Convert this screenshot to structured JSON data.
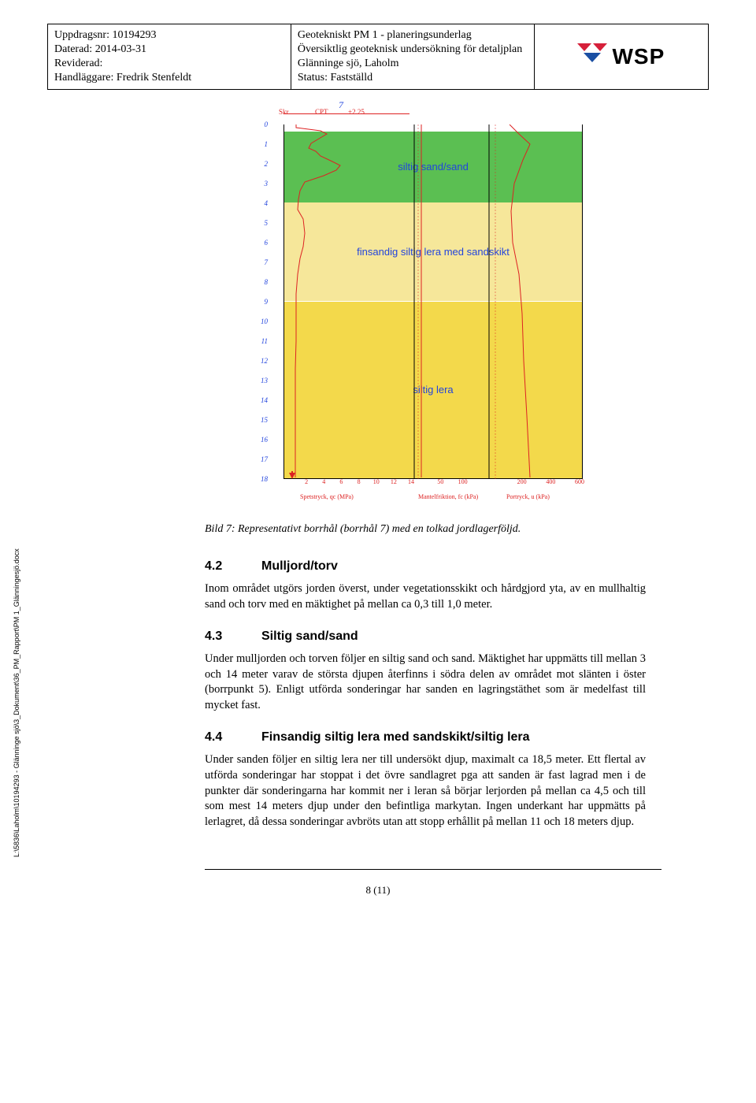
{
  "header": {
    "left": {
      "uppdragsnr": "Uppdragsnr: 10194293",
      "daterad": "Daterad: 2014-03-31",
      "reviderad": "Reviderad:",
      "handlaggare": "Handläggare: Fredrik Stenfeldt"
    },
    "mid": {
      "title": "Geotekniskt PM 1 - planeringsunderlag",
      "sub1": "Översiktlig geoteknisk undersökning för detaljplan",
      "sub2": "Glänninge sjö, Laholm",
      "status": "Status: Fastställd"
    },
    "logo_text": "WSP"
  },
  "chart": {
    "point_label": "7",
    "top_axis": {
      "skr": "Skr",
      "cpt": "CPT",
      "val": "+2.25"
    },
    "y_ticks": [
      0,
      1,
      2,
      3,
      4,
      5,
      6,
      7,
      8,
      9,
      10,
      11,
      12,
      13,
      14,
      15,
      16,
      17,
      18
    ],
    "layers": [
      {
        "label": "siltig sand/sand",
        "top_pct": 2,
        "height_pct": 20,
        "bg": "#5bbf52"
      },
      {
        "label": "finsandig siltig lera med sandskikt",
        "top_pct": 22,
        "height_pct": 28,
        "bg": "#f6e79a"
      },
      {
        "label": "siltig lera",
        "top_pct": 50,
        "height_pct": 50,
        "bg": "#f3d94b"
      }
    ],
    "left_series": [
      [
        9,
        0
      ],
      [
        9,
        4
      ],
      [
        40,
        8
      ],
      [
        48,
        12
      ],
      [
        38,
        18
      ],
      [
        28,
        24
      ],
      [
        25,
        30
      ],
      [
        34,
        34
      ],
      [
        40,
        40
      ],
      [
        55,
        47
      ],
      [
        65,
        52
      ],
      [
        60,
        58
      ],
      [
        44,
        65
      ],
      [
        20,
        73
      ],
      [
        14,
        84
      ],
      [
        12,
        95
      ],
      [
        11,
        108
      ],
      [
        18,
        120
      ],
      [
        20,
        138
      ],
      [
        18,
        155
      ],
      [
        14,
        170
      ],
      [
        11,
        190
      ],
      [
        9,
        215
      ],
      [
        9,
        240
      ],
      [
        9,
        275
      ],
      [
        8,
        310
      ],
      [
        8,
        355
      ],
      [
        8,
        400
      ],
      [
        8,
        448
      ]
    ],
    "mid_series": [
      [
        2,
        0
      ],
      [
        2,
        40
      ],
      [
        2,
        110
      ],
      [
        2,
        448
      ]
    ],
    "right_series": [
      [
        18,
        0
      ],
      [
        30,
        12
      ],
      [
        44,
        25
      ],
      [
        35,
        45
      ],
      [
        24,
        75
      ],
      [
        20,
        110
      ],
      [
        22,
        150
      ],
      [
        30,
        190
      ],
      [
        34,
        240
      ],
      [
        36,
        300
      ],
      [
        40,
        370
      ],
      [
        44,
        448
      ]
    ],
    "x_left": {
      "ticks": [
        2,
        4,
        6,
        8,
        10,
        12,
        14
      ],
      "title": "Spetstryck, qc (MPa)"
    },
    "x_mid": {
      "ticks": [
        50,
        100
      ],
      "title": "Mantelfriktion, fc (kPa)"
    },
    "x_right": {
      "ticks": [
        200,
        400,
        600
      ],
      "title": "Portryck, u (kPa)"
    },
    "colors": {
      "axis_num": "#2244dd",
      "trace": "#d22",
      "bg": "#ffffff"
    }
  },
  "caption": "Bild 7: Representativt borrhål (borrhål 7) med en tolkad jordlagerföljd.",
  "sections": {
    "s42": {
      "num": "4.2",
      "title": "Mulljord/torv",
      "body": "Inom området utgörs jorden överst, under vegetationsskikt och hårdgjord yta, av en mullhaltig sand och torv med en mäktighet på mellan ca 0,3 till 1,0 meter."
    },
    "s43": {
      "num": "4.3",
      "title": "Siltig sand/sand",
      "body": "Under mulljorden och torven följer en siltig sand och sand. Mäktighet har uppmätts till mellan 3 och 14 meter varav de största djupen återfinns i södra delen av området mot slänten i öster (borrpunkt 5). Enligt utförda sonderingar har sanden en lagringstäthet som är medelfast till mycket fast."
    },
    "s44": {
      "num": "4.4",
      "title": "Finsandig siltig lera med sandskikt/siltig lera",
      "body": "Under sanden följer en siltig lera ner till undersökt djup, maximalt ca 18,5 meter. Ett flertal av utförda sonderingar har stoppat i det övre sandlagret pga att sanden är fast lagrad men i de punkter där sonderingarna har kommit ner i leran så börjar lerjorden på mellan ca 4,5 och till som mest 14 meters djup under den befintliga markytan. Ingen underkant har uppmätts på lerlagret, då dessa sonderingar avbröts utan att stopp erhållit på mellan 11 och 18 meters djup."
    }
  },
  "side_path": "L:\\5836\\Laholm\\10194293 - Glänninge sjö\\3_Dokument\\36_PM_Rapport\\PM 1_Glänningesjö.docx",
  "footer": "8 (11)"
}
